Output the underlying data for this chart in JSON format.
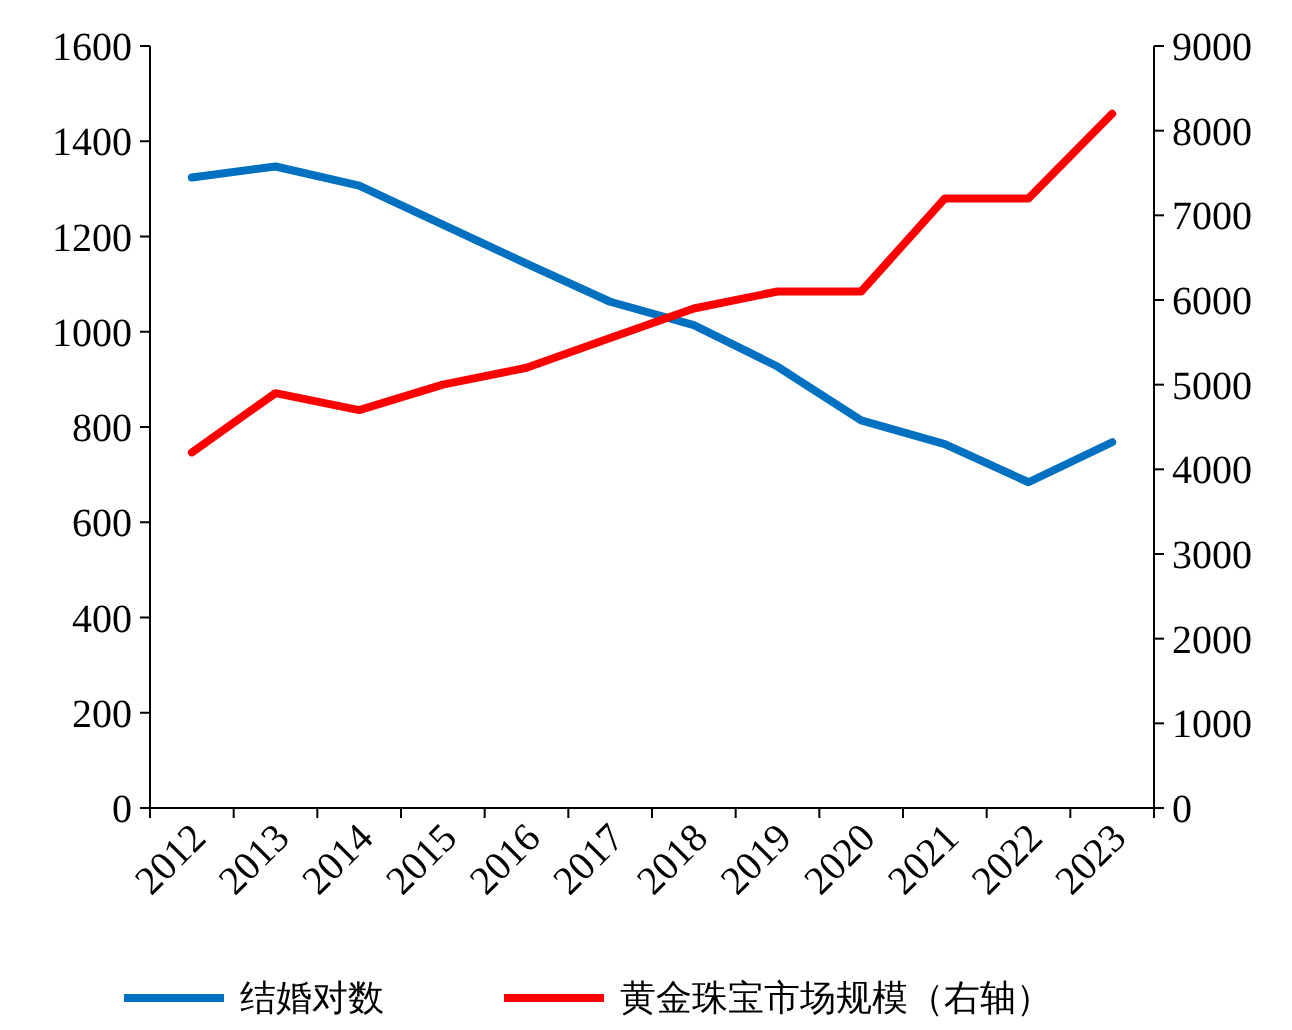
{
  "chart_data": {
    "type": "line",
    "categories": [
      "2012",
      "2013",
      "2014",
      "2015",
      "2016",
      "2017",
      "2018",
      "2019",
      "2020",
      "2021",
      "2022",
      "2023"
    ],
    "series": [
      {
        "name": "结婚对数",
        "color": "#0070c0",
        "values": [
          1324,
          1347,
          1307,
          1225,
          1143,
          1063,
          1014,
          927,
          814,
          764,
          684,
          768
        ]
      },
      {
        "name": "黄金珠宝市场规模（右轴）",
        "color": "#ff0000",
        "axis": "y2",
        "values": [
          4200,
          4900,
          4700,
          5000,
          5200,
          5550,
          5900,
          6100,
          6100,
          7200,
          7200,
          8200
        ]
      }
    ],
    "ylim": [
      0,
      1600
    ],
    "yticks": [
      0,
      200,
      400,
      600,
      800,
      1000,
      1200,
      1400,
      1600
    ],
    "y2lim": [
      0,
      9000
    ],
    "y2ticks": [
      0,
      1000,
      2000,
      3000,
      4000,
      5000,
      6000,
      7000,
      8000,
      9000
    ],
    "legend": "bottom",
    "grid": false
  }
}
